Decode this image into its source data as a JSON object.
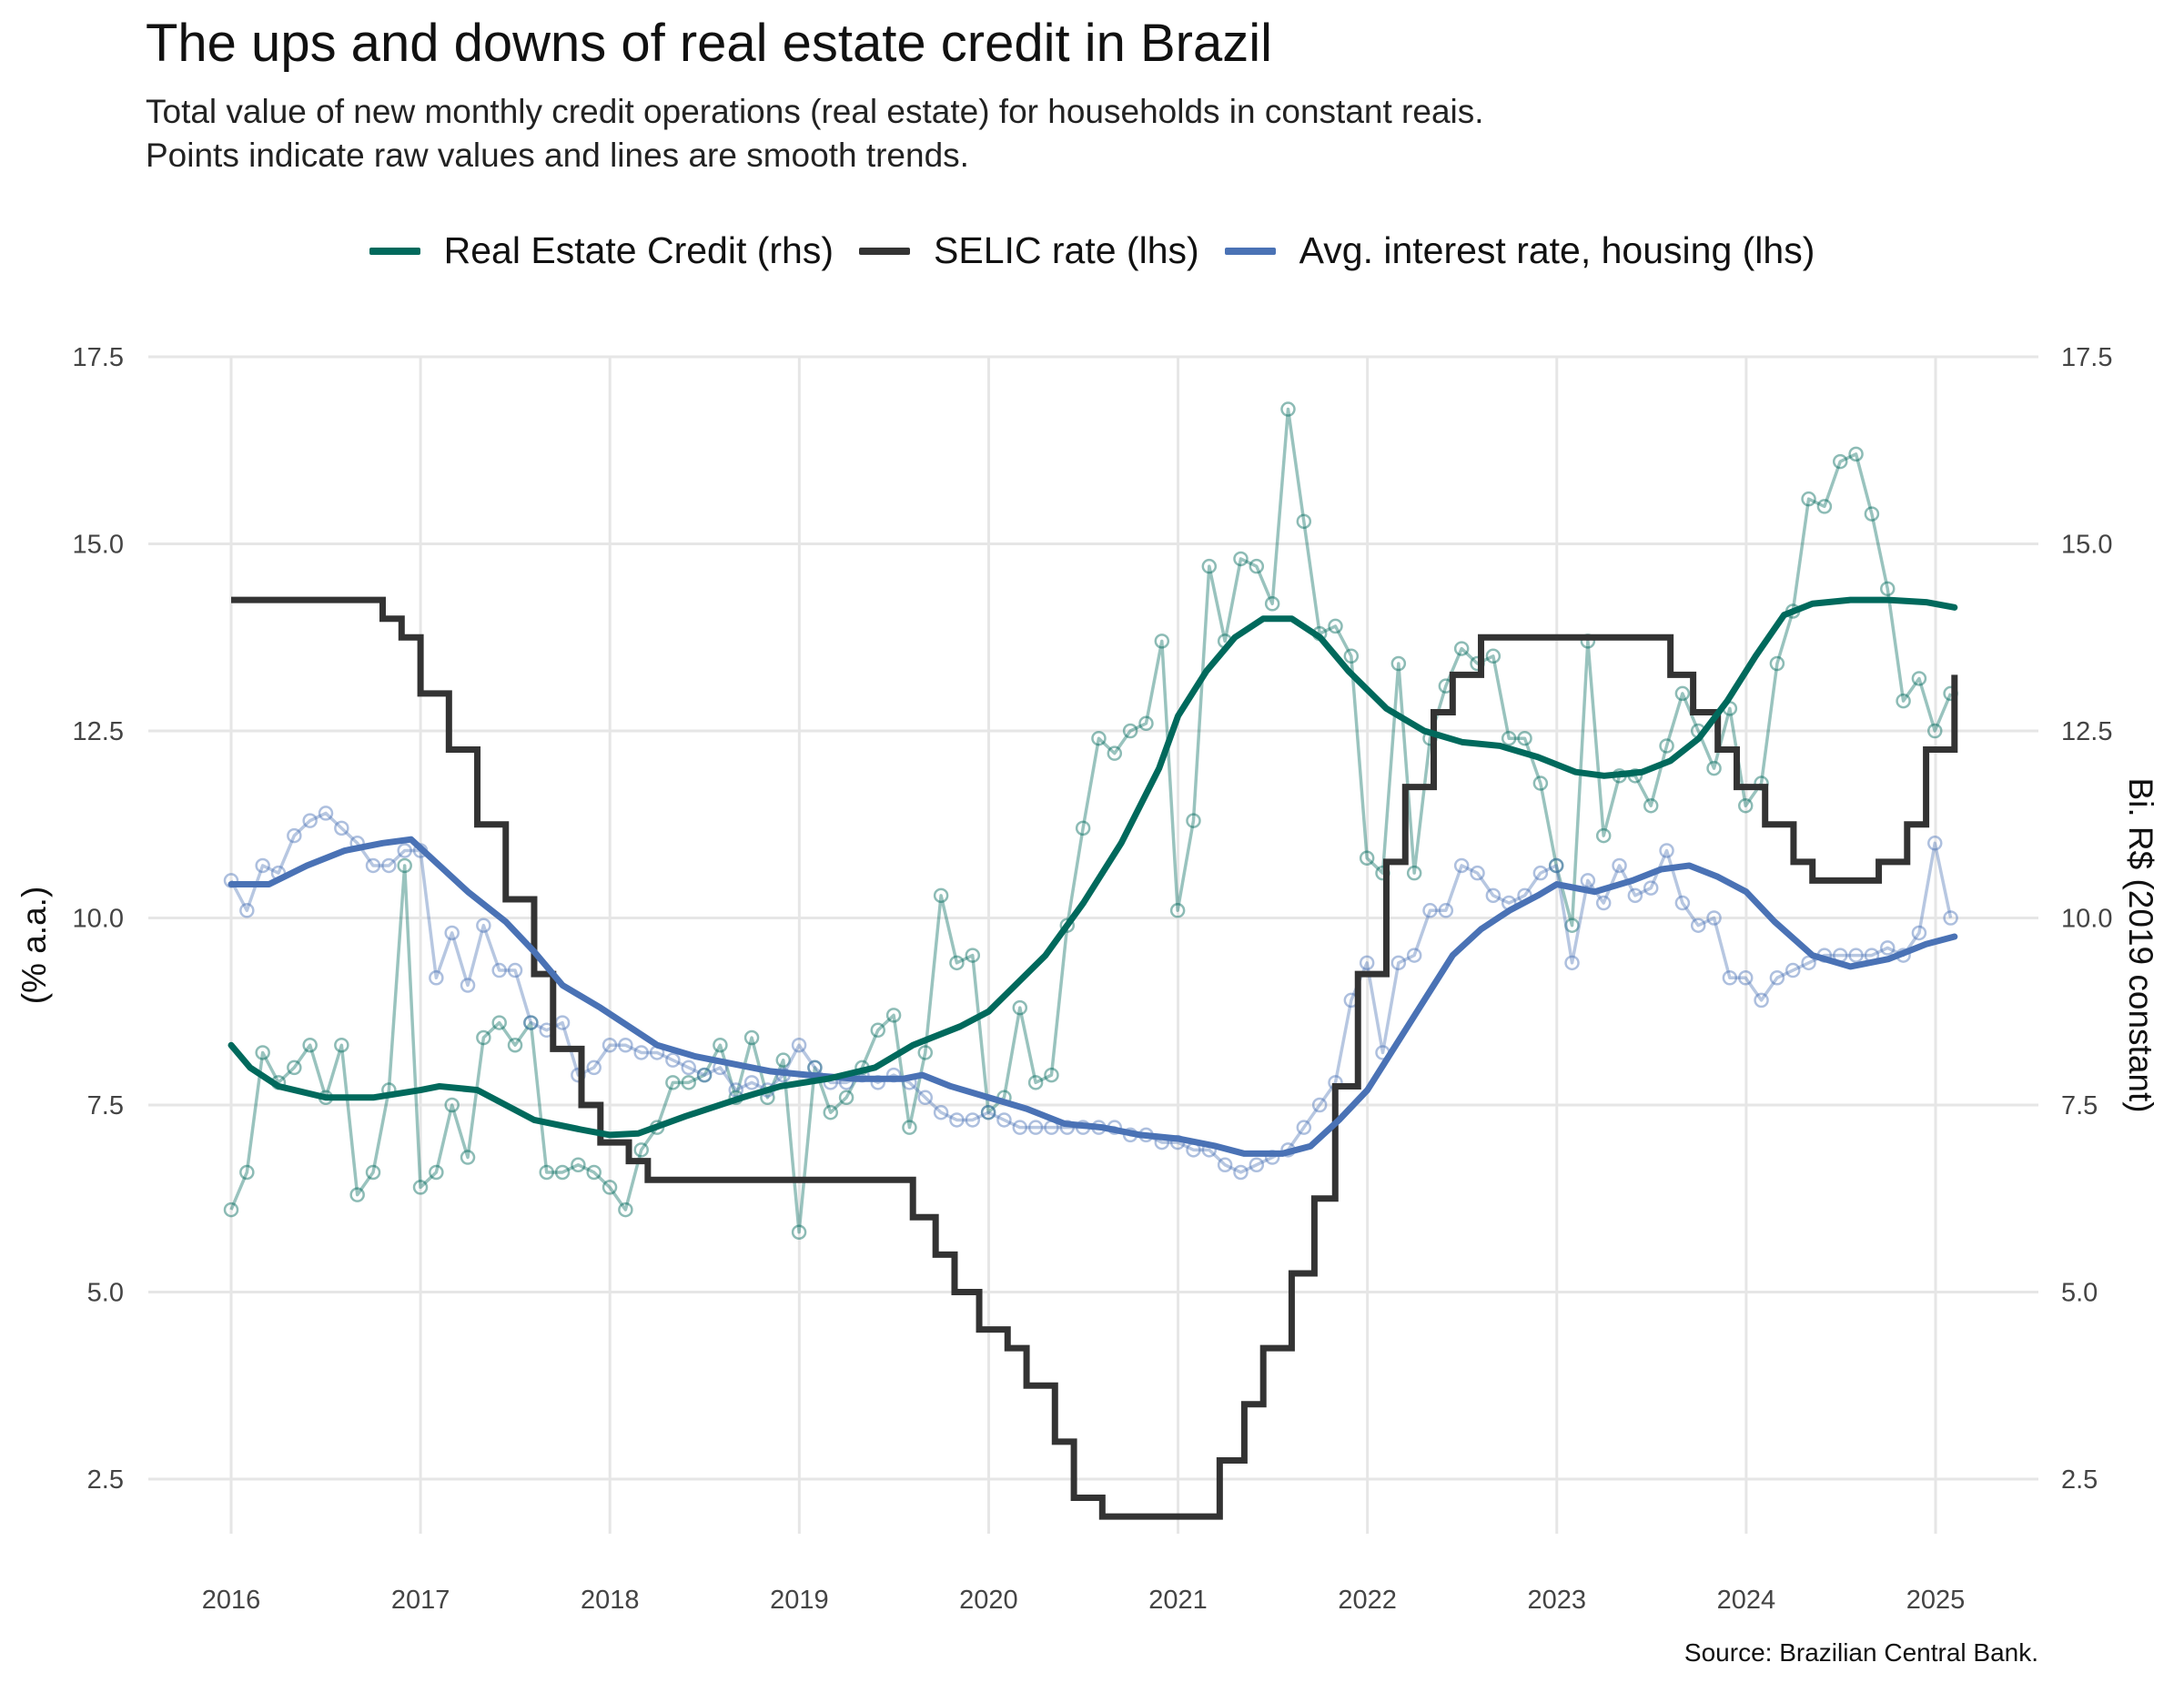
{
  "title": "The ups and downs of real estate credit in Brazil",
  "subtitle_lines": [
    "Total value of new monthly credit operations (real estate) for households in constant reais.",
    "Points indicate raw values and lines are smooth trends."
  ],
  "caption": "Source: Brazilian Central Bank.",
  "colors": {
    "credit": "#00695C",
    "selic": "#333333",
    "housing": "#4A72B5",
    "grid": "#E6E6E6"
  },
  "chart_data": {
    "type": "line",
    "legend_position": "top",
    "grid": true,
    "xlim": [
      2015.9,
      2025.5
    ],
    "ylim": [
      1.3,
      17.5
    ],
    "xticks": [
      2016,
      2017,
      2018,
      2019,
      2020,
      2021,
      2022,
      2023,
      2024,
      2025
    ],
    "x_tick_labels": [
      "2016",
      "2017",
      "2018",
      "2019",
      "2020",
      "2021",
      "2022",
      "2023",
      "2024",
      "2025"
    ],
    "yticks": [
      2.5,
      5.0,
      7.5,
      10.0,
      12.5,
      15.0,
      17.5
    ],
    "y_tick_labels": [
      "2.5",
      "5.0",
      "7.5",
      "10.0",
      "12.5",
      "15.0",
      "17.5"
    ],
    "ylabel_left": "(% a.a.)",
    "ylabel_right": "Bi. R$ (2019 constant)",
    "series": [
      {
        "name": "Real Estate Credit (rhs)",
        "color_key": "credit",
        "raw_x_start": 2016.0,
        "raw_x_step": 0.0833,
        "raw_values": [
          6.1,
          6.6,
          8.2,
          7.8,
          8.0,
          8.3,
          7.6,
          8.3,
          6.3,
          6.6,
          7.7,
          10.7,
          6.4,
          6.6,
          7.5,
          6.8,
          8.4,
          8.6,
          8.3,
          8.6,
          6.6,
          6.6,
          6.7,
          6.6,
          6.4,
          6.1,
          6.9,
          7.2,
          7.8,
          7.8,
          7.9,
          8.3,
          7.6,
          8.4,
          7.6,
          8.1,
          5.8,
          8.0,
          7.4,
          7.6,
          8.0,
          8.5,
          8.7,
          7.2,
          8.2,
          10.3,
          9.4,
          9.5,
          7.4,
          7.6,
          8.8,
          7.8,
          7.9,
          9.9,
          11.2,
          12.4,
          12.2,
          12.5,
          12.6,
          13.7,
          10.1,
          11.3,
          14.7,
          13.7,
          14.8,
          14.7,
          14.2,
          16.8,
          15.3,
          13.8,
          13.9,
          13.5,
          10.8,
          10.6,
          13.4,
          10.6,
          12.4,
          13.1,
          13.6,
          13.4,
          13.5,
          12.4,
          12.4,
          11.8,
          10.7,
          9.9,
          13.7,
          11.1,
          11.9,
          11.9,
          11.5,
          12.3,
          13.0,
          12.5,
          12.0,
          12.8,
          11.5,
          11.8,
          13.4,
          14.1,
          15.6,
          15.5,
          16.1,
          16.2,
          15.4,
          14.4,
          12.9,
          13.2,
          12.5,
          13.0
        ],
        "trend": [
          [
            2016.0,
            8.3
          ],
          [
            2016.1,
            8.0
          ],
          [
            2016.25,
            7.75
          ],
          [
            2016.5,
            7.6
          ],
          [
            2016.75,
            7.6
          ],
          [
            2017.0,
            7.7
          ],
          [
            2017.1,
            7.75
          ],
          [
            2017.3,
            7.7
          ],
          [
            2017.6,
            7.3
          ],
          [
            2017.85,
            7.17
          ],
          [
            2018.0,
            7.1
          ],
          [
            2018.15,
            7.12
          ],
          [
            2018.4,
            7.35
          ],
          [
            2018.7,
            7.6
          ],
          [
            2018.9,
            7.75
          ],
          [
            2019.15,
            7.85
          ],
          [
            2019.4,
            8.0
          ],
          [
            2019.6,
            8.3
          ],
          [
            2019.85,
            8.55
          ],
          [
            2020.0,
            8.75
          ],
          [
            2020.1,
            9.0
          ],
          [
            2020.3,
            9.5
          ],
          [
            2020.5,
            10.2
          ],
          [
            2020.7,
            11.0
          ],
          [
            2020.9,
            12.0
          ],
          [
            2021.0,
            12.7
          ],
          [
            2021.15,
            13.3
          ],
          [
            2021.3,
            13.75
          ],
          [
            2021.45,
            14.0
          ],
          [
            2021.6,
            14.0
          ],
          [
            2021.75,
            13.75
          ],
          [
            2021.9,
            13.3
          ],
          [
            2022.1,
            12.8
          ],
          [
            2022.3,
            12.5
          ],
          [
            2022.5,
            12.35
          ],
          [
            2022.7,
            12.3
          ],
          [
            2022.9,
            12.15
          ],
          [
            2023.1,
            11.95
          ],
          [
            2023.25,
            11.9
          ],
          [
            2023.45,
            11.95
          ],
          [
            2023.6,
            12.1
          ],
          [
            2023.75,
            12.4
          ],
          [
            2023.9,
            12.9
          ],
          [
            2024.05,
            13.5
          ],
          [
            2024.2,
            14.05
          ],
          [
            2024.35,
            14.2
          ],
          [
            2024.55,
            14.25
          ],
          [
            2024.75,
            14.25
          ],
          [
            2024.95,
            14.22
          ],
          [
            2025.1,
            14.15
          ]
        ]
      },
      {
        "name": "SELIC rate (lhs)",
        "color_key": "selic",
        "type": "step",
        "steps": [
          [
            2016.0,
            14.25
          ],
          [
            2016.8,
            14.0
          ],
          [
            2016.9,
            13.75
          ],
          [
            2017.0,
            13.0
          ],
          [
            2017.15,
            12.25
          ],
          [
            2017.3,
            11.25
          ],
          [
            2017.45,
            10.25
          ],
          [
            2017.6,
            9.25
          ],
          [
            2017.7,
            8.25
          ],
          [
            2017.85,
            7.5
          ],
          [
            2017.95,
            7.0
          ],
          [
            2018.1,
            6.75
          ],
          [
            2018.2,
            6.5
          ],
          [
            2019.6,
            6.0
          ],
          [
            2019.72,
            5.5
          ],
          [
            2019.82,
            5.0
          ],
          [
            2019.95,
            4.5
          ],
          [
            2020.1,
            4.25
          ],
          [
            2020.2,
            3.75
          ],
          [
            2020.35,
            3.0
          ],
          [
            2020.45,
            2.25
          ],
          [
            2020.6,
            2.0
          ],
          [
            2021.22,
            2.75
          ],
          [
            2021.35,
            3.5
          ],
          [
            2021.45,
            4.25
          ],
          [
            2021.6,
            5.25
          ],
          [
            2021.72,
            6.25
          ],
          [
            2021.83,
            7.75
          ],
          [
            2021.95,
            9.25
          ],
          [
            2022.1,
            10.75
          ],
          [
            2022.2,
            11.75
          ],
          [
            2022.35,
            12.75
          ],
          [
            2022.45,
            13.25
          ],
          [
            2022.6,
            13.75
          ],
          [
            2023.6,
            13.25
          ],
          [
            2023.72,
            12.75
          ],
          [
            2023.85,
            12.25
          ],
          [
            2023.95,
            11.75
          ],
          [
            2024.1,
            11.25
          ],
          [
            2024.25,
            10.75
          ],
          [
            2024.35,
            10.5
          ],
          [
            2024.7,
            10.75
          ],
          [
            2024.85,
            11.25
          ],
          [
            2024.95,
            12.25
          ],
          [
            2025.1,
            13.25
          ]
        ],
        "end_x": 2025.1
      },
      {
        "name": "Avg. interest rate, housing (lhs)",
        "color_key": "housing",
        "raw_x_start": 2016.0,
        "raw_x_step": 0.0833,
        "raw_values": [
          10.5,
          10.1,
          10.7,
          10.6,
          11.1,
          11.3,
          11.4,
          11.2,
          11.0,
          10.7,
          10.7,
          10.9,
          10.9,
          9.2,
          9.8,
          9.1,
          9.9,
          9.3,
          9.3,
          8.6,
          8.5,
          8.6,
          7.9,
          8.0,
          8.3,
          8.3,
          8.2,
          8.2,
          8.1,
          8.0,
          7.9,
          8.0,
          7.7,
          7.8,
          7.7,
          7.9,
          8.3,
          8.0,
          7.8,
          7.8,
          7.9,
          7.8,
          7.9,
          7.8,
          7.6,
          7.4,
          7.3,
          7.3,
          7.4,
          7.3,
          7.2,
          7.2,
          7.2,
          7.2,
          7.2,
          7.2,
          7.2,
          7.1,
          7.1,
          7.0,
          7.0,
          6.9,
          6.9,
          6.7,
          6.6,
          6.7,
          6.8,
          6.9,
          7.2,
          7.5,
          7.8,
          8.9,
          9.4,
          8.2,
          9.4,
          9.5,
          10.1,
          10.1,
          10.7,
          10.6,
          10.3,
          10.2,
          10.3,
          10.6,
          10.7,
          9.4,
          10.5,
          10.2,
          10.7,
          10.3,
          10.4,
          10.9,
          10.2,
          9.9,
          10.0,
          9.2,
          9.2,
          8.9,
          9.2,
          9.3,
          9.4,
          9.5,
          9.5,
          9.5,
          9.5,
          9.6,
          9.5,
          9.8,
          11.0,
          10.0
        ],
        "trend": [
          [
            2016.0,
            10.45
          ],
          [
            2016.2,
            10.45
          ],
          [
            2016.4,
            10.7
          ],
          [
            2016.6,
            10.9
          ],
          [
            2016.8,
            11.0
          ],
          [
            2016.95,
            11.05
          ],
          [
            2017.1,
            10.7
          ],
          [
            2017.25,
            10.35
          ],
          [
            2017.45,
            9.95
          ],
          [
            2017.6,
            9.55
          ],
          [
            2017.75,
            9.1
          ],
          [
            2017.95,
            8.8
          ],
          [
            2018.1,
            8.55
          ],
          [
            2018.25,
            8.3
          ],
          [
            2018.45,
            8.15
          ],
          [
            2018.65,
            8.05
          ],
          [
            2018.85,
            7.95
          ],
          [
            2019.05,
            7.9
          ],
          [
            2019.3,
            7.85
          ],
          [
            2019.55,
            7.85
          ],
          [
            2019.65,
            7.9
          ],
          [
            2019.8,
            7.75
          ],
          [
            2020.0,
            7.6
          ],
          [
            2020.2,
            7.45
          ],
          [
            2020.4,
            7.25
          ],
          [
            2020.6,
            7.2
          ],
          [
            2020.8,
            7.1
          ],
          [
            2021.0,
            7.05
          ],
          [
            2021.2,
            6.95
          ],
          [
            2021.35,
            6.85
          ],
          [
            2021.55,
            6.85
          ],
          [
            2021.7,
            6.95
          ],
          [
            2021.85,
            7.3
          ],
          [
            2022.0,
            7.7
          ],
          [
            2022.15,
            8.3
          ],
          [
            2022.3,
            8.9
          ],
          [
            2022.45,
            9.5
          ],
          [
            2022.6,
            9.85
          ],
          [
            2022.75,
            10.1
          ],
          [
            2022.9,
            10.3
          ],
          [
            2023.0,
            10.45
          ],
          [
            2023.2,
            10.35
          ],
          [
            2023.4,
            10.5
          ],
          [
            2023.55,
            10.65
          ],
          [
            2023.7,
            10.7
          ],
          [
            2023.85,
            10.55
          ],
          [
            2024.0,
            10.35
          ],
          [
            2024.15,
            9.95
          ],
          [
            2024.35,
            9.5
          ],
          [
            2024.55,
            9.35
          ],
          [
            2024.75,
            9.45
          ],
          [
            2024.95,
            9.65
          ],
          [
            2025.1,
            9.75
          ]
        ]
      }
    ]
  }
}
